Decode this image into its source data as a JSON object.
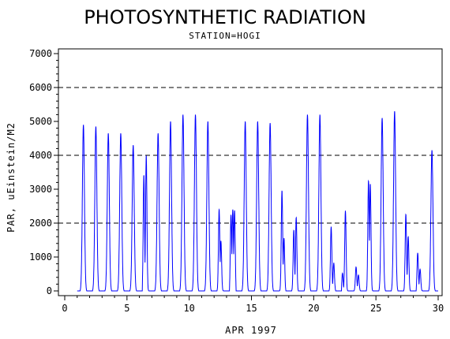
{
  "chart_data": {
    "type": "line",
    "title": "PHOTOSYNTHETIC RADIATION",
    "subtitle": "STATION=HOGI",
    "xlabel": "APR 1997",
    "ylabel": "PAR, uEinstein/M2",
    "xlim": [
      0,
      30
    ],
    "ylim": [
      0,
      7000
    ],
    "x_ticks": [
      0,
      5,
      10,
      15,
      20,
      25,
      30
    ],
    "y_ticks": [
      0,
      1000,
      2000,
      3000,
      4000,
      5000,
      6000,
      7000
    ],
    "reference_lines": [
      2000,
      4000,
      6000
    ],
    "line_color": "#0000ff",
    "daily_peaks": [
      {
        "day": 1,
        "peaks": [
          [
            0.5,
            4900
          ]
        ]
      },
      {
        "day": 2,
        "peaks": [
          [
            0.5,
            4850
          ]
        ]
      },
      {
        "day": 3,
        "peaks": [
          [
            0.5,
            4650
          ]
        ]
      },
      {
        "day": 4,
        "peaks": [
          [
            0.5,
            4650
          ]
        ]
      },
      {
        "day": 5,
        "peaks": [
          [
            0.5,
            4300
          ]
        ]
      },
      {
        "day": 6,
        "peaks": [
          [
            0.35,
            3950
          ],
          [
            0.55,
            4050
          ]
        ]
      },
      {
        "day": 7,
        "peaks": [
          [
            0.5,
            4650
          ]
        ]
      },
      {
        "day": 8,
        "peaks": [
          [
            0.5,
            5000
          ]
        ]
      },
      {
        "day": 9,
        "peaks": [
          [
            0.5,
            5200
          ]
        ]
      },
      {
        "day": 10,
        "peaks": [
          [
            0.5,
            5200
          ]
        ]
      },
      {
        "day": 11,
        "peaks": [
          [
            0.5,
            5000
          ]
        ]
      },
      {
        "day": 12,
        "peaks": [
          [
            0.4,
            2550
          ],
          [
            0.55,
            1500
          ]
        ]
      },
      {
        "day": 13,
        "peaks": [
          [
            0.35,
            2600
          ],
          [
            0.5,
            2400
          ],
          [
            0.65,
            2750
          ]
        ]
      },
      {
        "day": 14,
        "peaks": [
          [
            0.5,
            5000
          ]
        ]
      },
      {
        "day": 15,
        "peaks": [
          [
            0.5,
            5000
          ]
        ]
      },
      {
        "day": 16,
        "peaks": [
          [
            0.5,
            4950
          ]
        ]
      },
      {
        "day": 17,
        "peaks": [
          [
            0.45,
            3000
          ],
          [
            0.62,
            1700
          ]
        ]
      },
      {
        "day": 18,
        "peaks": [
          [
            0.4,
            1900
          ],
          [
            0.6,
            2300
          ]
        ]
      },
      {
        "day": 19,
        "peaks": [
          [
            0.5,
            5200
          ]
        ]
      },
      {
        "day": 20,
        "peaks": [
          [
            0.5,
            5200
          ]
        ]
      },
      {
        "day": 21,
        "peaks": [
          [
            0.4,
            2000
          ],
          [
            0.62,
            900
          ]
        ]
      },
      {
        "day": 22,
        "peaks": [
          [
            0.3,
            700
          ],
          [
            0.55,
            2400
          ]
        ]
      },
      {
        "day": 23,
        "peaks": [
          [
            0.4,
            750
          ],
          [
            0.6,
            500
          ]
        ]
      },
      {
        "day": 24,
        "peaks": [
          [
            0.4,
            3450
          ],
          [
            0.55,
            3200
          ]
        ]
      },
      {
        "day": 25,
        "peaks": [
          [
            0.5,
            5100
          ]
        ]
      },
      {
        "day": 26,
        "peaks": [
          [
            0.5,
            5300
          ]
        ]
      },
      {
        "day": 27,
        "peaks": [
          [
            0.4,
            2400
          ],
          [
            0.6,
            1700
          ]
        ]
      },
      {
        "day": 28,
        "peaks": [
          [
            0.35,
            1300
          ],
          [
            0.55,
            650
          ]
        ]
      },
      {
        "day": 29,
        "peaks": [
          [
            0.5,
            4150
          ]
        ]
      }
    ]
  }
}
